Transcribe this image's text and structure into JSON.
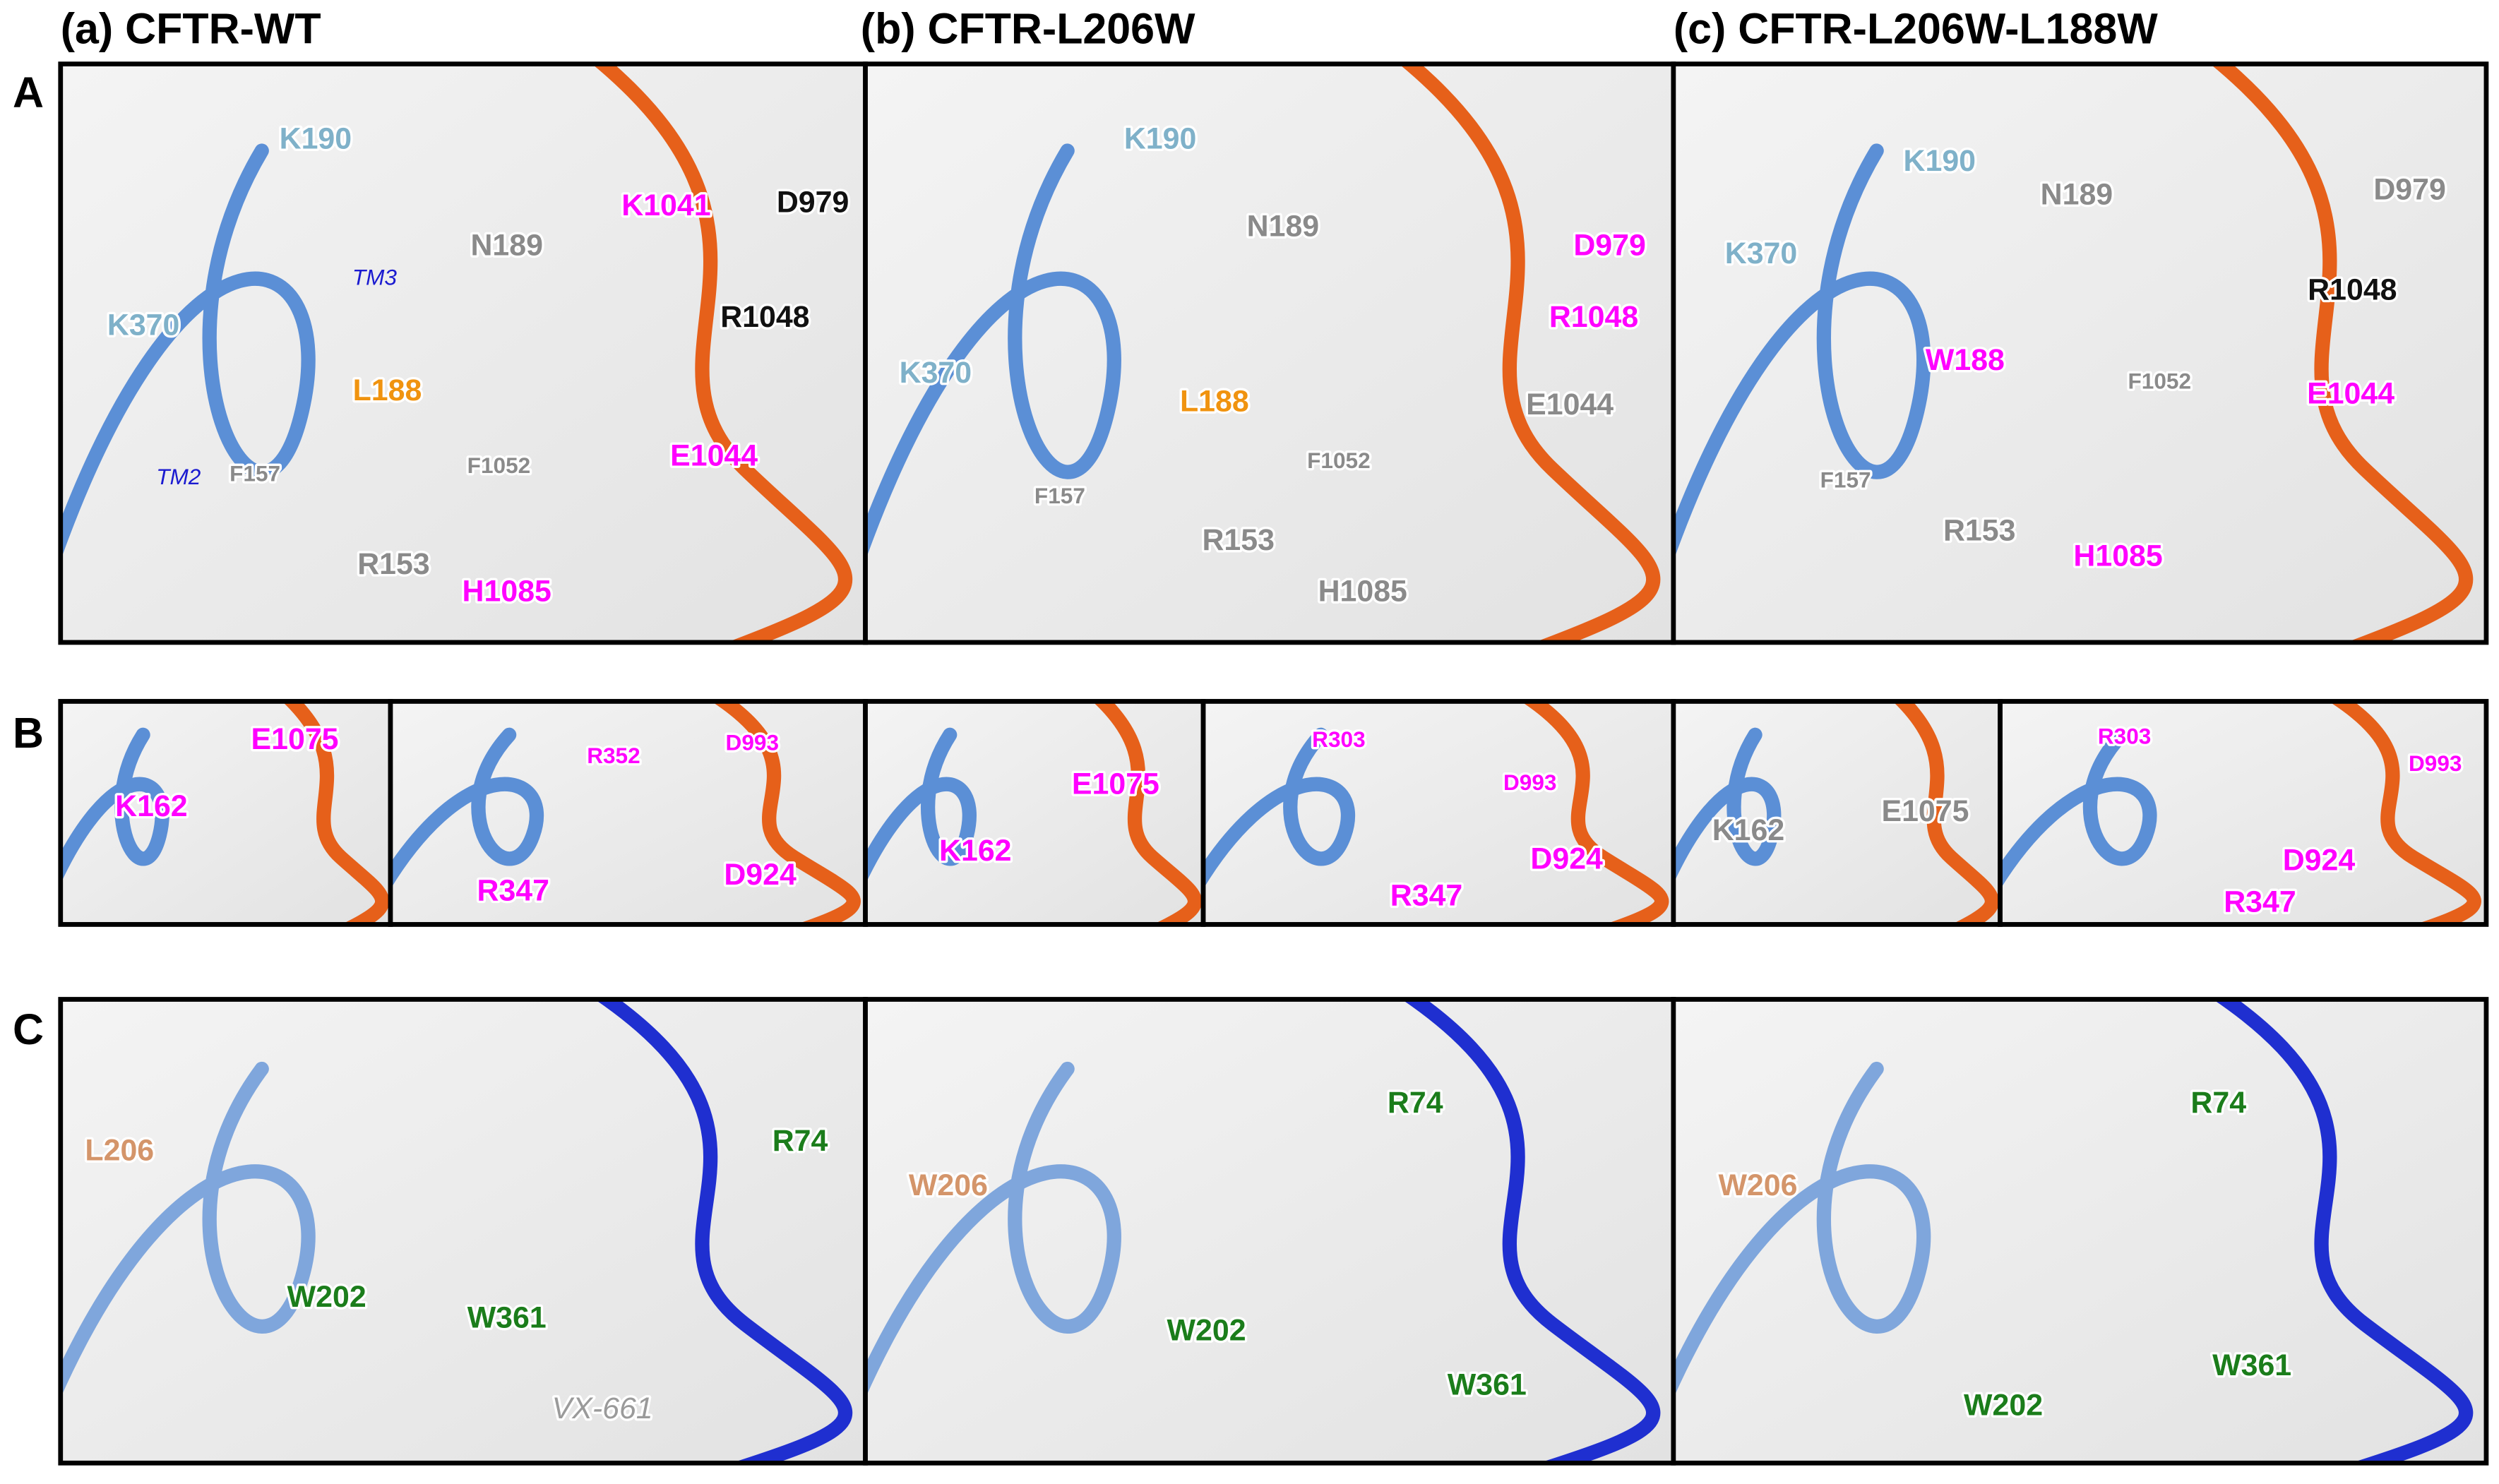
{
  "titles": [
    "(a) CFTR-WT",
    "(b) CFTR-L206W",
    "(c) CFTR-L206W-L188W"
  ],
  "row_labels": [
    "A",
    "B",
    "C"
  ],
  "panels": [
    {
      "labels": [
        "K190",
        "K1041",
        "D979",
        "N189",
        "K370",
        "R1048",
        "TM3",
        "L188",
        "E1044",
        "F157",
        "F1052",
        "TM2",
        "R153",
        "H1085"
      ]
    },
    {
      "labels": [
        "K190",
        "N189",
        "D979",
        "K370",
        "R1048",
        "L188",
        "E1044",
        "F1052",
        "F157",
        "R153",
        "H1085"
      ]
    },
    {
      "labels": [
        "K190",
        "N189",
        "D979",
        "K370",
        "R1048",
        "W188",
        "F1052",
        "E1044",
        "F157",
        "R153",
        "H1085"
      ]
    },
    {
      "labels": [
        "E1075",
        "K162"
      ]
    },
    {
      "labels": [
        "R352",
        "D993",
        "R347",
        "D924"
      ]
    },
    {
      "labels": [
        "E1075",
        "K162"
      ]
    },
    {
      "labels": [
        "R303",
        "D993",
        "D924",
        "R347"
      ]
    },
    {
      "labels": [
        "K162",
        "E1075"
      ]
    },
    {
      "labels": [
        "R303",
        "D993",
        "D924",
        "R347"
      ]
    },
    {
      "labels": [
        "L206",
        "R74",
        "W202",
        "W361",
        "VX-661"
      ]
    },
    {
      "labels": [
        "R74",
        "W206",
        "W202",
        "W361"
      ]
    },
    {
      "labels": [
        "R74",
        "W206",
        "W202",
        "W361"
      ]
    }
  ]
}
